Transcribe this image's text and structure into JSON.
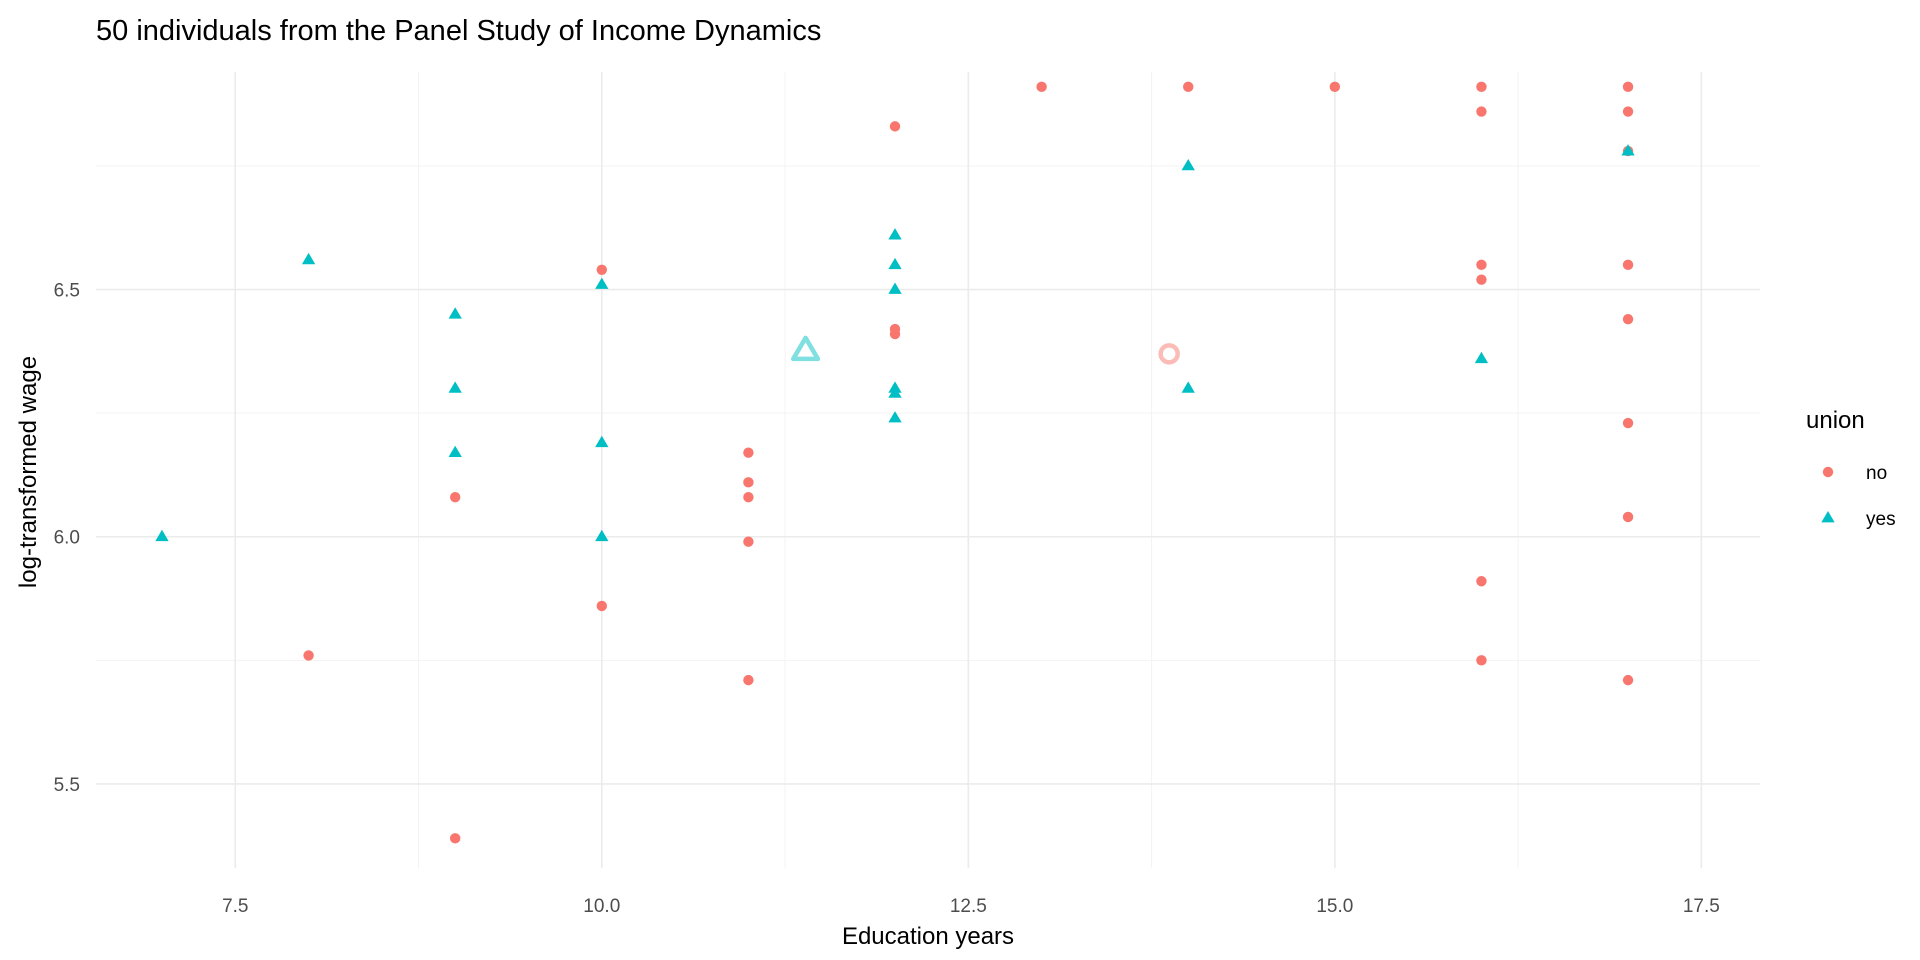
{
  "chart_data": {
    "type": "scatter",
    "title": "50 individuals from the Panel Study of Income Dynamics",
    "xlabel": "Education years",
    "ylabel": "log-transformed wage",
    "xlim": [
      6.55,
      17.9
    ],
    "ylim": [
      5.33,
      6.94
    ],
    "x_ticks": [
      7.5,
      10.0,
      12.5,
      15.0,
      17.5
    ],
    "x_tick_labels": [
      "7.5",
      "10.0",
      "12.5",
      "15.0",
      "17.5"
    ],
    "y_ticks": [
      5.5,
      6.0,
      6.5
    ],
    "y_tick_labels": [
      "5.5",
      "6.0",
      "6.5"
    ],
    "grid": true,
    "legend": {
      "title": "union",
      "placement": "right",
      "entries": [
        {
          "label": "no",
          "shape": "circle",
          "color": "#f8766d"
        },
        {
          "label": "yes",
          "shape": "triangle",
          "color": "#00bfc4"
        }
      ]
    },
    "series": [
      {
        "name": "no",
        "shape": "circle",
        "color": "#f8766d",
        "points": [
          {
            "x": 8,
            "y": 5.76
          },
          {
            "x": 9,
            "y": 6.08
          },
          {
            "x": 9,
            "y": 5.39
          },
          {
            "x": 10,
            "y": 6.54
          },
          {
            "x": 10,
            "y": 5.86
          },
          {
            "x": 11,
            "y": 6.17
          },
          {
            "x": 11,
            "y": 6.11
          },
          {
            "x": 11,
            "y": 6.08
          },
          {
            "x": 11,
            "y": 5.99
          },
          {
            "x": 11,
            "y": 5.71
          },
          {
            "x": 12,
            "y": 6.83
          },
          {
            "x": 12,
            "y": 6.42
          },
          {
            "x": 12,
            "y": 6.41
          },
          {
            "x": 13,
            "y": 6.91
          },
          {
            "x": 14,
            "y": 6.91
          },
          {
            "x": 15,
            "y": 6.91
          },
          {
            "x": 16,
            "y": 6.91
          },
          {
            "x": 16,
            "y": 6.86
          },
          {
            "x": 16,
            "y": 6.55
          },
          {
            "x": 16,
            "y": 6.52
          },
          {
            "x": 16,
            "y": 5.91
          },
          {
            "x": 16,
            "y": 5.75
          },
          {
            "x": 17,
            "y": 6.91
          },
          {
            "x": 17,
            "y": 6.86
          },
          {
            "x": 17,
            "y": 6.78
          },
          {
            "x": 17,
            "y": 6.55
          },
          {
            "x": 17,
            "y": 6.44
          },
          {
            "x": 17,
            "y": 6.23
          },
          {
            "x": 17,
            "y": 6.04
          },
          {
            "x": 17,
            "y": 5.71
          }
        ]
      },
      {
        "name": "yes",
        "shape": "triangle",
        "color": "#00bfc4",
        "points": [
          {
            "x": 7,
            "y": 6.0
          },
          {
            "x": 8,
            "y": 6.56
          },
          {
            "x": 9,
            "y": 6.45
          },
          {
            "x": 9,
            "y": 6.3
          },
          {
            "x": 9,
            "y": 6.17
          },
          {
            "x": 10,
            "y": 6.51
          },
          {
            "x": 10,
            "y": 6.19
          },
          {
            "x": 10,
            "y": 6.0
          },
          {
            "x": 12,
            "y": 6.61
          },
          {
            "x": 12,
            "y": 6.55
          },
          {
            "x": 12,
            "y": 6.5
          },
          {
            "x": 12,
            "y": 6.3
          },
          {
            "x": 12,
            "y": 6.29
          },
          {
            "x": 12,
            "y": 6.24
          },
          {
            "x": 14,
            "y": 6.75
          },
          {
            "x": 14,
            "y": 6.3
          },
          {
            "x": 16,
            "y": 6.36
          },
          {
            "x": 17,
            "y": 6.78
          }
        ]
      }
    ],
    "mean_markers": [
      {
        "group": "yes",
        "shape": "triangle-open",
        "color": "#7fdfe1",
        "x": 11.39,
        "y": 6.38
      },
      {
        "group": "no",
        "shape": "circle-open",
        "color": "#fbbbb6",
        "x": 13.87,
        "y": 6.37
      }
    ]
  }
}
